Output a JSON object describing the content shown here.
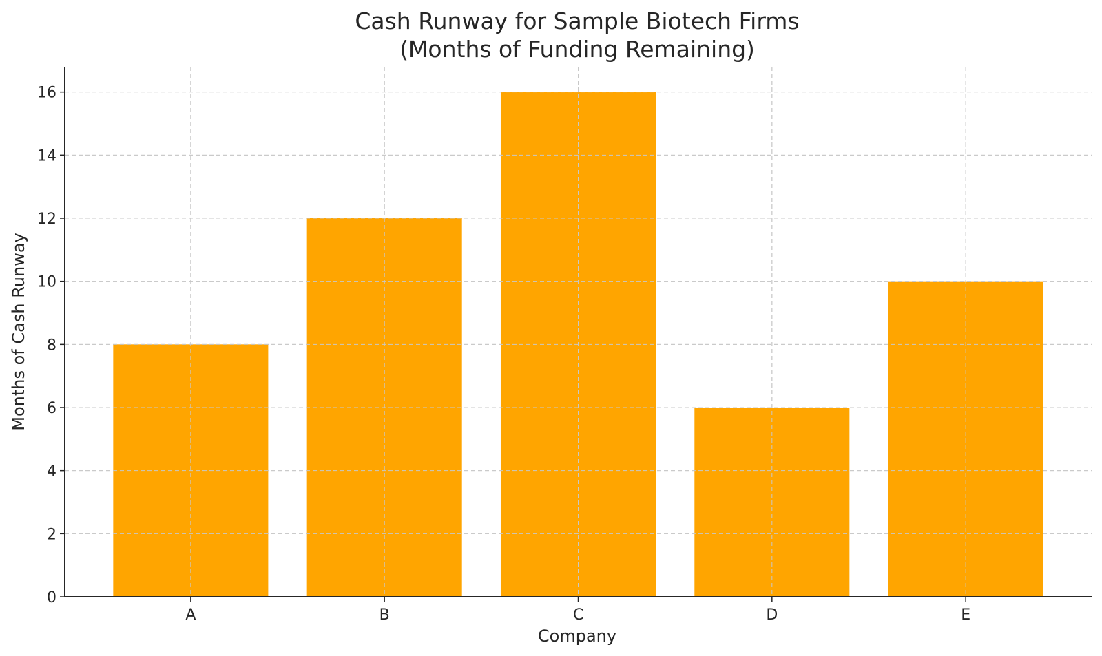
{
  "chart_data": {
    "type": "bar",
    "title": "Cash Runway for Sample Biotech Firms",
    "subtitle": "(Months of Funding Remaining)",
    "xlabel": "Company",
    "ylabel": "Months of Cash Runway",
    "categories": [
      "A",
      "B",
      "C",
      "D",
      "E"
    ],
    "values": [
      8,
      12,
      16,
      6,
      10
    ],
    "ylim": [
      0,
      16.8
    ],
    "yticks": [
      0,
      2,
      4,
      6,
      8,
      10,
      12,
      14,
      16
    ],
    "bar_color": "#FFA500",
    "grid": true,
    "legend": "none"
  }
}
